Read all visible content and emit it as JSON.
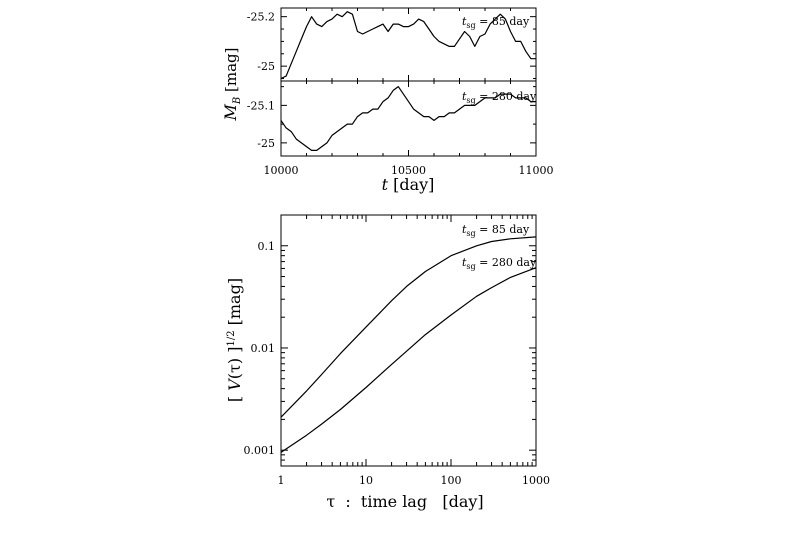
{
  "chart_data": [
    {
      "type": "line",
      "panel": "top",
      "x_range": [
        10000,
        11000
      ],
      "x_ticks": [
        "10000",
        "10500",
        "11000"
      ],
      "y_ticks": [
        "-25.2",
        "-25"
      ],
      "y_reversed": true,
      "annotation": {
        "symbol": "t",
        "subscript": "sg",
        "text": " = 85 day"
      },
      "series": [
        {
          "x": [
            10000,
            10020,
            10040,
            10060,
            10080,
            10100,
            10120,
            10140,
            10160,
            10180,
            10200,
            10220,
            10240,
            10260,
            10280,
            10300,
            10320,
            10340,
            10360,
            10380,
            10400,
            10420,
            10440,
            10460,
            10480,
            10500,
            10520,
            10540,
            10560,
            10580,
            10600,
            10620,
            10640,
            10660,
            10680,
            10700,
            10720,
            10740,
            10760,
            10780,
            10800,
            10820,
            10840,
            10860,
            10880,
            10900,
            10920,
            10940,
            10960,
            10980,
            11000
          ],
          "y": [
            -24.95,
            -24.96,
            -25.01,
            -25.06,
            -25.11,
            -25.16,
            -25.2,
            -25.17,
            -25.16,
            -25.18,
            -25.19,
            -25.21,
            -25.2,
            -25.22,
            -25.21,
            -25.14,
            -25.13,
            -25.14,
            -25.15,
            -25.16,
            -25.17,
            -25.14,
            -25.17,
            -25.17,
            -25.16,
            -25.16,
            -25.17,
            -25.19,
            -25.18,
            -25.15,
            -25.12,
            -25.1,
            -25.09,
            -25.08,
            -25.08,
            -25.11,
            -25.14,
            -25.12,
            -25.08,
            -25.12,
            -25.13,
            -25.17,
            -25.19,
            -25.21,
            -25.19,
            -25.14,
            -25.1,
            -25.1,
            -25.06,
            -25.03,
            -25.03
          ]
        }
      ]
    },
    {
      "type": "line",
      "panel": "middle",
      "x_range": [
        10000,
        11000
      ],
      "x_ticks": [
        "10000",
        "10500",
        "11000"
      ],
      "y_ticks": [
        "-25.1",
        "-25"
      ],
      "y_reversed": true,
      "annotation": {
        "symbol": "t",
        "subscript": "sg",
        "text": " = 280 day"
      },
      "series": [
        {
          "x": [
            10000,
            10020,
            10040,
            10060,
            10080,
            10100,
            10120,
            10140,
            10160,
            10180,
            10200,
            10220,
            10240,
            10260,
            10280,
            10300,
            10320,
            10340,
            10360,
            10380,
            10400,
            10420,
            10440,
            10460,
            10480,
            10500,
            10520,
            10540,
            10560,
            10580,
            10600,
            10620,
            10640,
            10660,
            10680,
            10700,
            10720,
            10740,
            10760,
            10780,
            10800,
            10820,
            10840,
            10860,
            10880,
            10900,
            10920,
            10940,
            10960,
            10980,
            11000
          ],
          "y": [
            -25.06,
            -25.04,
            -25.03,
            -25.01,
            -25.0,
            -24.99,
            -24.98,
            -24.98,
            -24.99,
            -25.0,
            -25.02,
            -25.03,
            -25.04,
            -25.05,
            -25.05,
            -25.07,
            -25.08,
            -25.08,
            -25.09,
            -25.09,
            -25.11,
            -25.12,
            -25.14,
            -25.15,
            -25.13,
            -25.11,
            -25.09,
            -25.08,
            -25.07,
            -25.07,
            -25.06,
            -25.07,
            -25.07,
            -25.08,
            -25.08,
            -25.09,
            -25.1,
            -25.1,
            -25.1,
            -25.11,
            -25.12,
            -25.12,
            -25.12,
            -25.13,
            -25.13,
            -25.13,
            -25.12,
            -25.12,
            -25.12,
            -25.11,
            -25.11
          ]
        }
      ]
    },
    {
      "type": "line",
      "panel": "bottom",
      "x_scale": "log",
      "y_scale": "log",
      "x_range": [
        1,
        1000
      ],
      "y_range": [
        0.0007,
        0.2
      ],
      "x_ticks": [
        "1",
        "10",
        "100",
        "1000"
      ],
      "y_ticks": [
        "0.1",
        "0.01",
        "0.001"
      ],
      "series": [
        {
          "annotation": {
            "symbol": "t",
            "subscript": "sg",
            "text": " = 85 day"
          },
          "x": [
            1,
            2,
            3,
            5,
            10,
            20,
            30,
            50,
            100,
            200,
            300,
            500,
            1000
          ],
          "y": [
            0.0021,
            0.0038,
            0.0055,
            0.0088,
            0.016,
            0.029,
            0.04,
            0.056,
            0.08,
            0.1,
            0.11,
            0.117,
            0.122
          ]
        },
        {
          "annotation": {
            "symbol": "t",
            "subscript": "sg",
            "text": " = 280 day"
          },
          "x": [
            1,
            2,
            3,
            5,
            10,
            20,
            30,
            50,
            100,
            200,
            300,
            500,
            1000
          ],
          "y": [
            0.00095,
            0.0014,
            0.0018,
            0.0025,
            0.0041,
            0.0069,
            0.0093,
            0.0135,
            0.021,
            0.032,
            0.039,
            0.049,
            0.061
          ]
        }
      ]
    }
  ]
}
